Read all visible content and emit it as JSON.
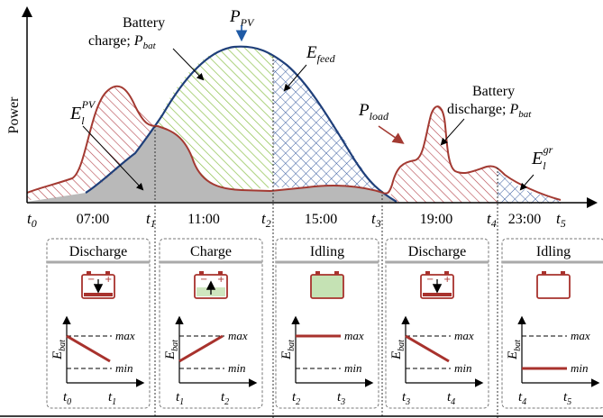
{
  "colors": {
    "pv": "#1f3f7a",
    "load": "#a33a32",
    "charge_hatch": "#8cc04a",
    "discharge_hatch": "#b3424a",
    "feed_hatch": "#3a5da0",
    "grid_area": "#b9b9b9",
    "battery_fill_charge": "#cfe6bf",
    "battery_fill_idle": "#c5e2b4",
    "battery_red": "#a8322d",
    "box_border": "#777777",
    "box_header": "#d0d0d0",
    "text": "#000000"
  },
  "chart": {
    "ylabel": "Power",
    "time_ticks": [
      "07:00",
      "11:00",
      "15:00",
      "19:00",
      "23:00"
    ],
    "time_markers": [
      {
        "base": "t",
        "sub": "0"
      },
      {
        "base": "t",
        "sub": "1"
      },
      {
        "base": "t",
        "sub": "2"
      },
      {
        "base": "t",
        "sub": "3"
      },
      {
        "base": "t",
        "sub": "4"
      },
      {
        "base": "t",
        "sub": "5"
      }
    ],
    "labels": {
      "ppv_base": "P",
      "ppv_sub": "PV",
      "battery_charge_line1": "Battery",
      "battery_charge_line2": "charge;",
      "pbat_base": "P",
      "pbat_sub": "bat",
      "efeed_base": "E",
      "efeed_sub": "feed",
      "elpv_base": "E",
      "elpv_sub": "l",
      "elpv_sup": "PV",
      "pload_base": "P",
      "pload_sub": "load",
      "battery_discharge_line1": "Battery",
      "battery_discharge_line2": "discharge;",
      "elgr_base": "E",
      "elgr_sub": "l",
      "elgr_sup": "gr"
    }
  },
  "modes": [
    {
      "title": "Discharge",
      "battery": "discharge",
      "line": "down",
      "t_start": "0",
      "t_end": "1"
    },
    {
      "title": "Charge",
      "battery": "charge",
      "line": "up",
      "t_start": "1",
      "t_end": "2"
    },
    {
      "title": "Idling",
      "battery": "full",
      "line": "flat-max",
      "t_start": "2",
      "t_end": "3"
    },
    {
      "title": "Discharge",
      "battery": "discharge",
      "line": "down",
      "t_start": "3",
      "t_end": "4"
    },
    {
      "title": "Idling",
      "battery": "empty",
      "line": "flat-min",
      "t_start": "4",
      "t_end": "5"
    }
  ],
  "mini_plot": {
    "ylabel_base": "E",
    "ylabel_sub": "bat",
    "max_label": "max",
    "min_label": "min",
    "t_base": "t"
  }
}
